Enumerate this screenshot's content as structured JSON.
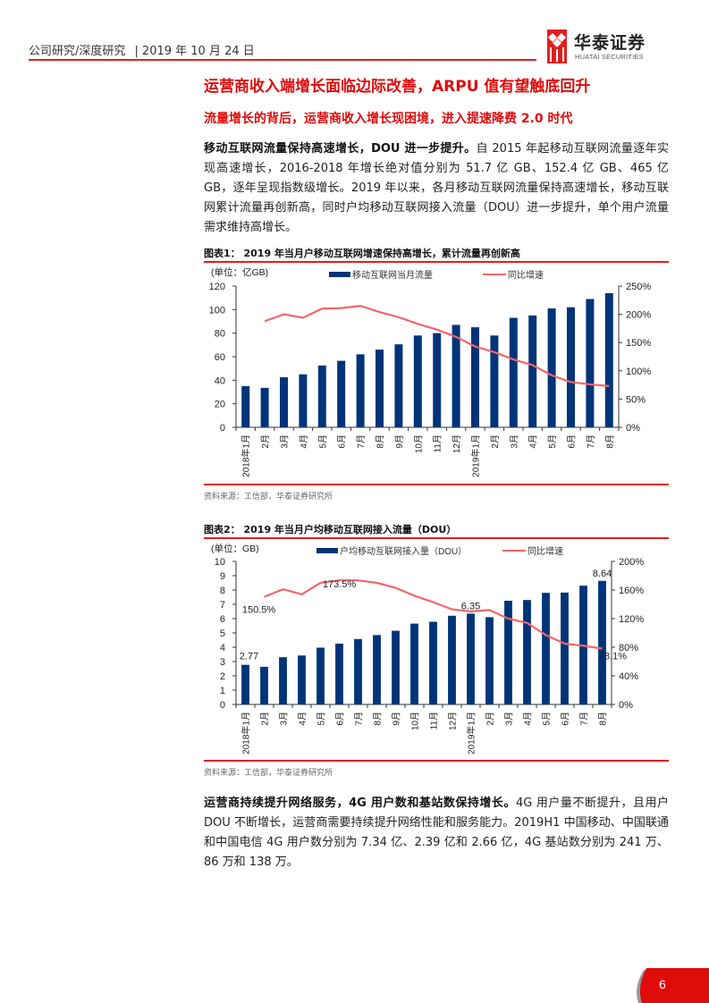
{
  "header": {
    "category": "公司研究/深度研究",
    "separator": "|",
    "date": "2019 年 10 月 24 日",
    "logo_cn": "华泰证券",
    "logo_en": "HUATAI SECURITIES",
    "accent_color": "#e02020"
  },
  "section": {
    "title": "运营商收入端增长面临边际改善，ARPU 值有望触底回升",
    "subtitle": "流量增长的背后，运营商收入增长现困境，进入提速降费 2.0 时代"
  },
  "paragraph1": {
    "lead": "移动互联网流量保持高速增长，DOU 进一步提升。",
    "body": "自 2015 年起移动互联网流量逐年实现高速增长，2016-2018 年增长绝对值分别为 51.7 亿 GB、152.4 亿 GB、465 亿 GB，逐年呈现指数级增长。2019 年以来，各月移动互联网流量保持高速增长，移动互联网累计流量再创新高，同时户均移动互联网接入流量（DOU）进一步提升，单个用户流量需求维持高增长。"
  },
  "figure1": {
    "title": "图表1：  2019 年当月户移动互联网增速保持高增长，累计流量再创新高",
    "source": "资料来源：工信部，华泰证券研究所"
  },
  "figure2": {
    "title": "图表2：  2019 年当月户均移动互联网接入流量（DOU）",
    "source": "资料来源：工信部，华泰证券研究所"
  },
  "paragraph2": {
    "lead": "运营商持续提升网络服务，4G 用户数和基站数保持增长。",
    "body": "4G 用户量不断提升，且用户 DOU 不断增长，运营商需要持续提升网络性能和服务能力。2019H1 中国移动、中国联通和中国电信 4G 用户数分别为 7.34 亿、2.39 亿和 2.66 亿，4G 基站数分别为 241 万、86 万和 138 万。"
  },
  "footer": {
    "page_number": "6"
  },
  "chart_data": [
    {
      "type": "bar",
      "title": "2019 年当月户移动互联网增速保持高增长，累计流量再创新高",
      "unit_label": "(单位：亿GB)",
      "categories": [
        "2018年1月",
        "2月",
        "3月",
        "4月",
        "5月",
        "6月",
        "7月",
        "8月",
        "9月",
        "10月",
        "11月",
        "12月",
        "2019年1月",
        "2月",
        "3月",
        "4月",
        "5月",
        "6月",
        "7月",
        "8月"
      ],
      "series": [
        {
          "name": "移动互联网当月流量",
          "type": "bar",
          "axis": "left",
          "color": "#003478",
          "values": [
            35,
            33.5,
            42.5,
            45,
            52.5,
            56.5,
            62,
            66,
            70.5,
            78,
            80,
            87,
            85,
            78,
            93,
            95,
            101,
            102,
            109,
            114
          ]
        },
        {
          "name": "同比增速",
          "type": "line",
          "axis": "right",
          "color": "#f4666a",
          "values": [
            null,
            188,
            200,
            194,
            210,
            211,
            215,
            204,
            195,
            183,
            173,
            160,
            143,
            133,
            120,
            110,
            92,
            80,
            76,
            73
          ]
        }
      ],
      "ylim": [
        0,
        120
      ],
      "yticks": [
        0,
        20,
        40,
        60,
        80,
        100,
        120
      ],
      "y2lim": [
        0,
        250
      ],
      "y2ticks": [
        "0%",
        "50%",
        "100%",
        "150%",
        "200%",
        "250%"
      ],
      "legend_position": "top"
    },
    {
      "type": "bar",
      "title": "2019 年当月户均移动互联网接入流量（DOU）",
      "unit_label": "(单位：GB)",
      "categories": [
        "2018年1月",
        "2月",
        "3月",
        "4月",
        "5月",
        "6月",
        "7月",
        "8月",
        "9月",
        "10月",
        "11月",
        "12月",
        "2019年1月",
        "2月",
        "3月",
        "4月",
        "5月",
        "6月",
        "7月",
        "8月"
      ],
      "series": [
        {
          "name": "户均移动互联网接入量（DOU）",
          "type": "bar",
          "axis": "left",
          "color": "#003478",
          "values": [
            2.77,
            2.63,
            3.3,
            3.42,
            3.97,
            4.25,
            4.57,
            4.85,
            5.15,
            5.65,
            5.78,
            6.2,
            6.35,
            6.1,
            7.25,
            7.3,
            7.8,
            7.82,
            8.3,
            8.64
          ]
        },
        {
          "name": "同比增速",
          "type": "line",
          "axis": "right",
          "color": "#f4666a",
          "values": [
            null,
            150.5,
            161,
            154,
            170,
            173.5,
            173.5,
            170,
            163,
            152,
            143,
            133,
            130,
            132,
            120,
            114,
            97,
            85,
            82,
            78.1
          ]
        }
      ],
      "ylim": [
        0,
        10
      ],
      "yticks": [
        0,
        1,
        2,
        3,
        4,
        5,
        6,
        7,
        8,
        9,
        10
      ],
      "y2lim": [
        0,
        200
      ],
      "y2ticks": [
        "0%",
        "40%",
        "80%",
        "120%",
        "160%",
        "200%"
      ],
      "annotations": [
        {
          "text": "2.77",
          "at": "2018年1月",
          "series": "bar"
        },
        {
          "text": "6.35",
          "at": "2019年1月",
          "series": "bar"
        },
        {
          "text": "8.64",
          "at": "8月",
          "series": "bar"
        },
        {
          "text": "150.5%",
          "at": "2月",
          "series": "line"
        },
        {
          "text": "173.5%",
          "at": "6月",
          "series": "line"
        },
        {
          "text": "78.1%",
          "at": "8月",
          "series": "line"
        }
      ],
      "legend_position": "top"
    }
  ]
}
